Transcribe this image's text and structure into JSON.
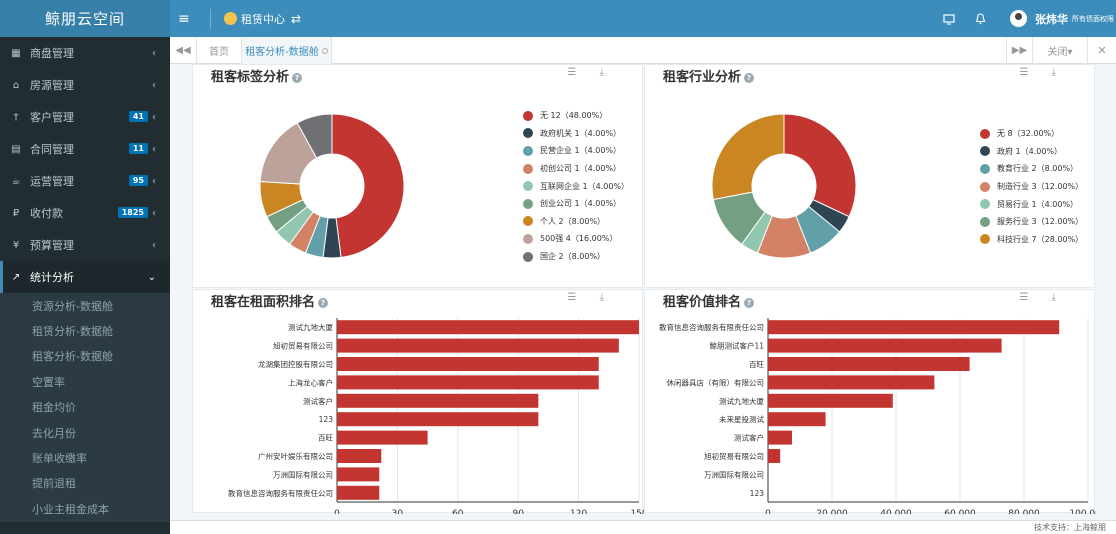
{
  "app": {
    "logo": "鲸朋云空间",
    "menu_toggle_icon": "≡",
    "nav_switch_label": "租赁中心",
    "nav_switch_arrow": "⇄",
    "user_name": "张炜华",
    "user_role": "所有债面权限"
  },
  "sidebar": {
    "items": [
      {
        "icon": "▦",
        "label": "商盘管理",
        "badge": "",
        "arrow": "‹"
      },
      {
        "icon": "⌂",
        "label": "房源管理",
        "badge": "",
        "arrow": "‹"
      },
      {
        "icon": "†",
        "label": "客户管理",
        "badge": "41",
        "arrow": "‹"
      },
      {
        "icon": "▤",
        "label": "合同管理",
        "badge": "11",
        "arrow": "‹"
      },
      {
        "icon": "☕",
        "label": "运营管理",
        "badge": "95",
        "arrow": "‹"
      },
      {
        "icon": "₽",
        "label": "收付款",
        "badge": "1825",
        "arrow": "‹"
      },
      {
        "icon": "¥",
        "label": "预算管理",
        "badge": "",
        "arrow": "‹"
      },
      {
        "icon": "↗",
        "label": "统计分析",
        "badge": "",
        "arrow": "⌄"
      }
    ],
    "subitems": [
      "资源分析-数据舱",
      "租赁分析-数据舱",
      "租客分析-数据舱",
      "空置率",
      "租金均价",
      "去化月份",
      "账单收缴率",
      "提前退租",
      "小业主租金成本"
    ]
  },
  "tabs": {
    "prev_icon": "◀◀",
    "home": "首页",
    "active": "租客分析-数据舱",
    "next_icon": "▶▶",
    "ops": "关闭▾",
    "close_icon": "✕"
  },
  "colors": {
    "palette": [
      "#c23531",
      "#2f4554",
      "#61a0a8",
      "#d48265",
      "#91c7ae",
      "#749f83",
      "#ca8622",
      "#bda29a",
      "#6e7074"
    ]
  },
  "panels": {
    "tags_title": "租客标签分析",
    "industry_title": "租客行业分析",
    "area_title": "租客在租面积排名",
    "value_title": "租客价值排名",
    "tools": "☰ ⤓",
    "help": "?"
  },
  "chart_data": [
    {
      "type": "pie",
      "title": "租客标签分析",
      "labels": [
        "无",
        "政府机关",
        "民营企业",
        "初创公司",
        "互联网企业",
        "创业公司",
        "个人",
        "500强",
        "国企"
      ],
      "values": [
        12,
        1,
        1,
        1,
        1,
        1,
        2,
        4,
        2
      ],
      "legend": [
        "无 12（48.00%）",
        "政府机关 1（4.00%）",
        "民营企业 1（4.00%）",
        "初创公司 1（4.00%）",
        "互联网企业 1（4.00%）",
        "创业公司 1（4.00%）",
        "个人 2（8.00%）",
        "500强 4（16.00%）",
        "国企 2（8.00%）"
      ]
    },
    {
      "type": "pie",
      "title": "租客行业分析",
      "labels": [
        "无",
        "政府",
        "教育行业",
        "制造行业",
        "贸易行业",
        "服务行业",
        "科技行业"
      ],
      "values": [
        8,
        1,
        2,
        3,
        1,
        3,
        7
      ],
      "legend": [
        "无 8（32.00%）",
        "政府 1（4.00%）",
        "教育行业 2（8.00%）",
        "制造行业 3（12.00%）",
        "贸易行业 1（4.00%）",
        "服务行业 3（12.00%）",
        "科技行业 7（28.00%）"
      ]
    },
    {
      "type": "bar",
      "title": "租客在租面积排名",
      "categories": [
        "测试九地大厦",
        "旭初贸易有限公司",
        "龙湖集团控股有限公司",
        "上海龙心客户",
        "测试客户",
        "123",
        "百旺",
        "广州安叶娱乐有限公司",
        "万洲国际有限公司",
        "教育信息咨询服务有限责任公司"
      ],
      "values": [
        150,
        140,
        130,
        130,
        100,
        100,
        45,
        22,
        21,
        21
      ],
      "xlim": [
        0,
        150
      ],
      "xticks": [
        "0",
        "30",
        "60",
        "90",
        "120",
        "150"
      ]
    },
    {
      "type": "bar",
      "title": "租客价值排名",
      "categories": [
        "教育信息咨询服务有限责任公司",
        "鲸朋测试客户11",
        "百旺",
        "休闲器具店（有限）有限公司",
        "测试九地大厦",
        "未来星投测试",
        "测试客户",
        "旭初贸易有限公司",
        "万洲国际有限公司",
        "123"
      ],
      "values": [
        91000,
        73000,
        63000,
        52000,
        39000,
        18000,
        7500,
        3800,
        0,
        0
      ],
      "xlim": [
        0,
        100000
      ],
      "xticks": [
        "0",
        "20,000",
        "40,000",
        "60,000",
        "80,000",
        "100,000"
      ]
    }
  ],
  "footer": "技术支持：上海鲸朋"
}
